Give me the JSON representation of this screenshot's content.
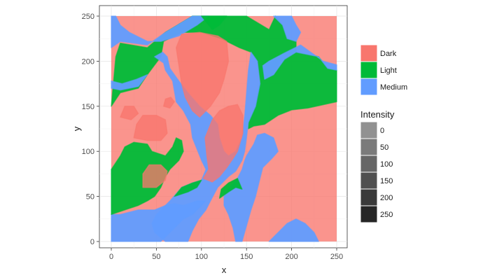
{
  "chart_data": {
    "type": "heatmap",
    "title": "",
    "xlabel": "x",
    "ylabel": "y",
    "xlim": [
      0,
      250
    ],
    "ylim": [
      0,
      250
    ],
    "x_ticks": [
      0,
      50,
      100,
      150,
      200,
      250
    ],
    "y_ticks": [
      0,
      50,
      100,
      150,
      200,
      250
    ],
    "grid": true,
    "legend_position": "right",
    "fill_legend": {
      "title": "",
      "entries": [
        {
          "label": "Dark",
          "color": "#F8766D"
        },
        {
          "label": "Light",
          "color": "#00BA38"
        },
        {
          "label": "Medium",
          "color": "#619CFF"
        }
      ]
    },
    "alpha_legend": {
      "title": "Intensity",
      "entries": [
        {
          "label": "0",
          "value": 0
        },
        {
          "label": "50",
          "value": 50
        },
        {
          "label": "100",
          "value": 100
        },
        {
          "label": "150",
          "value": 150
        },
        {
          "label": "200",
          "value": 200
        },
        {
          "label": "250",
          "value": 250
        }
      ]
    },
    "background_class": "Dark",
    "regions": [
      {
        "class": "Light",
        "points": [
          [
            0,
            150
          ],
          [
            5,
            205
          ],
          [
            10,
            220
          ],
          [
            40,
            215
          ],
          [
            60,
            232
          ],
          [
            90,
            250
          ],
          [
            150,
            250
          ],
          [
            175,
            235
          ],
          [
            182,
            250
          ],
          [
            190,
            240
          ],
          [
            195,
            225
          ],
          [
            205,
            222
          ],
          [
            205,
            210
          ],
          [
            230,
            205
          ],
          [
            240,
            192
          ],
          [
            250,
            190
          ],
          [
            250,
            155
          ],
          [
            218,
            148
          ],
          [
            200,
            146
          ],
          [
            185,
            140
          ],
          [
            170,
            130
          ],
          [
            158,
            128
          ],
          [
            152,
            125
          ],
          [
            152,
            132
          ],
          [
            160,
            150
          ],
          [
            165,
            178
          ],
          [
            162,
            200
          ],
          [
            155,
            210
          ],
          [
            142,
            215
          ],
          [
            122,
            225
          ],
          [
            100,
            232
          ],
          [
            78,
            232
          ],
          [
            58,
            222
          ],
          [
            55,
            205
          ],
          [
            40,
            185
          ],
          [
            30,
            170
          ],
          [
            10,
            165
          ]
        ]
      },
      {
        "class": "Medium",
        "points": [
          [
            0,
            215
          ],
          [
            10,
            222
          ],
          [
            40,
            218
          ],
          [
            60,
            232
          ],
          [
            90,
            250
          ],
          [
            108,
            250
          ],
          [
            95,
            240
          ],
          [
            75,
            228
          ],
          [
            55,
            222
          ],
          [
            40,
            222
          ],
          [
            20,
            232
          ],
          [
            10,
            240
          ],
          [
            5,
            250
          ],
          [
            0,
            250
          ]
        ]
      },
      {
        "class": "Medium",
        "points": [
          [
            180,
            250
          ],
          [
            200,
            250
          ],
          [
            205,
            240
          ],
          [
            210,
            232
          ],
          [
            205,
            222
          ],
          [
            195,
            225
          ],
          [
            190,
            240
          ]
        ]
      },
      {
        "class": "Medium",
        "points": [
          [
            175,
            200
          ],
          [
            190,
            208
          ],
          [
            210,
            218
          ],
          [
            235,
            200
          ],
          [
            250,
            196
          ],
          [
            250,
            190
          ],
          [
            240,
            192
          ],
          [
            230,
            205
          ],
          [
            205,
            210
          ],
          [
            192,
            202
          ],
          [
            180,
            185
          ],
          [
            170,
            180
          ],
          [
            168,
            195
          ]
        ]
      },
      {
        "class": "Medium",
        "points": [
          [
            162,
            200
          ],
          [
            165,
            175
          ],
          [
            160,
            150
          ],
          [
            152,
            132
          ],
          [
            150,
            115
          ],
          [
            148,
            100
          ],
          [
            145,
            90
          ],
          [
            138,
            78
          ],
          [
            130,
            72
          ],
          [
            118,
            60
          ],
          [
            110,
            45
          ],
          [
            105,
            35
          ],
          [
            97,
            25
          ],
          [
            90,
            12
          ],
          [
            85,
            0
          ],
          [
            60,
            0
          ],
          [
            48,
            10
          ],
          [
            45,
            20
          ],
          [
            50,
            30
          ],
          [
            65,
            45
          ],
          [
            78,
            60
          ],
          [
            90,
            65
          ],
          [
            100,
            68
          ],
          [
            105,
            80
          ],
          [
            100,
            90
          ],
          [
            90,
            115
          ],
          [
            88,
            130
          ],
          [
            80,
            145
          ],
          [
            72,
            155
          ],
          [
            68,
            178
          ],
          [
            60,
            190
          ],
          [
            58,
            198
          ],
          [
            48,
            205
          ],
          [
            57,
            210
          ],
          [
            62,
            205
          ],
          [
            65,
            192
          ],
          [
            75,
            178
          ],
          [
            85,
            165
          ],
          [
            98,
            150
          ],
          [
            110,
            140
          ],
          [
            118,
            130
          ],
          [
            120,
            115
          ],
          [
            125,
            100
          ],
          [
            130,
            95
          ],
          [
            138,
            100
          ],
          [
            145,
            115
          ],
          [
            148,
            140
          ],
          [
            150,
            165
          ],
          [
            152,
            190
          ],
          [
            155,
            210
          ]
        ]
      },
      {
        "class": "Medium",
        "points": [
          [
            145,
            0
          ],
          [
            155,
            35
          ],
          [
            160,
            50
          ],
          [
            165,
            70
          ],
          [
            168,
            82
          ],
          [
            178,
            92
          ],
          [
            185,
            100
          ],
          [
            180,
            115
          ],
          [
            170,
            120
          ],
          [
            162,
            118
          ],
          [
            158,
            108
          ],
          [
            150,
            95
          ],
          [
            148,
            90
          ],
          [
            145,
            80
          ],
          [
            140,
            70
          ],
          [
            130,
            58
          ],
          [
            125,
            50
          ],
          [
            125,
            40
          ],
          [
            130,
            30
          ],
          [
            135,
            15
          ],
          [
            138,
            0
          ]
        ]
      },
      {
        "class": "Medium",
        "points": [
          [
            0,
            0
          ],
          [
            0,
            30
          ],
          [
            10,
            30
          ],
          [
            30,
            35
          ],
          [
            48,
            35
          ],
          [
            60,
            40
          ],
          [
            70,
            42
          ],
          [
            80,
            40
          ],
          [
            95,
            45
          ],
          [
            105,
            45
          ],
          [
            100,
            40
          ],
          [
            90,
            30
          ],
          [
            80,
            25
          ],
          [
            70,
            15
          ],
          [
            60,
            5
          ],
          [
            55,
            0
          ]
        ]
      },
      {
        "class": "Medium",
        "points": [
          [
            175,
            0
          ],
          [
            185,
            10
          ],
          [
            195,
            20
          ],
          [
            205,
            25
          ],
          [
            215,
            20
          ],
          [
            225,
            10
          ],
          [
            230,
            0
          ]
        ]
      },
      {
        "class": "Medium",
        "points": [
          [
            0,
            170
          ],
          [
            10,
            168
          ],
          [
            30,
            172
          ],
          [
            40,
            185
          ],
          [
            28,
            180
          ],
          [
            12,
            175
          ],
          [
            0,
            178
          ]
        ]
      },
      {
        "class": "Light",
        "points": [
          [
            0,
            30
          ],
          [
            0,
            80
          ],
          [
            10,
            95
          ],
          [
            15,
            105
          ],
          [
            25,
            110
          ],
          [
            40,
            108
          ],
          [
            45,
            100
          ],
          [
            60,
            95
          ],
          [
            68,
            105
          ],
          [
            72,
            115
          ],
          [
            78,
            112
          ],
          [
            80,
            100
          ],
          [
            75,
            90
          ],
          [
            65,
            80
          ],
          [
            60,
            72
          ],
          [
            55,
            60
          ],
          [
            48,
            50
          ],
          [
            40,
            45
          ],
          [
            30,
            40
          ],
          [
            15,
            35
          ]
        ]
      },
      {
        "class": "Light",
        "points": [
          [
            70,
            50
          ],
          [
            85,
            55
          ],
          [
            95,
            60
          ],
          [
            100,
            68
          ],
          [
            90,
            65
          ],
          [
            78,
            60
          ]
        ]
      },
      {
        "class": "Light",
        "points": [
          [
            120,
            48
          ],
          [
            130,
            55
          ],
          [
            138,
            60
          ],
          [
            145,
            58
          ],
          [
            140,
            70
          ],
          [
            130,
            65
          ],
          [
            122,
            58
          ]
        ]
      },
      {
        "class": "Light",
        "points": [
          [
            100,
            250
          ],
          [
            128,
            250
          ],
          [
            120,
            240
          ],
          [
            112,
            235
          ]
        ]
      },
      {
        "class": "Dark",
        "points": [
          [
            25,
            115
          ],
          [
            40,
            112
          ],
          [
            55,
            112
          ],
          [
            62,
            120
          ],
          [
            60,
            135
          ],
          [
            50,
            140
          ],
          [
            35,
            140
          ],
          [
            28,
            130
          ]
        ]
      },
      {
        "class": "Dark",
        "points": [
          [
            10,
            138
          ],
          [
            22,
            135
          ],
          [
            30,
            142
          ],
          [
            25,
            150
          ],
          [
            15,
            150
          ]
        ]
      },
      {
        "class": "Dark",
        "points": [
          [
            35,
            60
          ],
          [
            50,
            60
          ],
          [
            60,
            68
          ],
          [
            62,
            78
          ],
          [
            55,
            85
          ],
          [
            42,
            85
          ],
          [
            35,
            75
          ]
        ]
      },
      {
        "class": "Dark",
        "points": [
          [
            78,
            230
          ],
          [
            98,
            232
          ],
          [
            118,
            228
          ],
          [
            128,
            222
          ],
          [
            130,
            200
          ],
          [
            125,
            180
          ],
          [
            120,
            165
          ],
          [
            110,
            150
          ],
          [
            98,
            138
          ],
          [
            90,
            145
          ],
          [
            82,
            160
          ],
          [
            78,
            175
          ],
          [
            75,
            195
          ],
          [
            72,
            215
          ]
        ]
      },
      {
        "class": "Dark",
        "points": [
          [
            102,
            70
          ],
          [
            108,
            80
          ],
          [
            106,
            95
          ],
          [
            104,
            115
          ],
          [
            108,
            125
          ],
          [
            112,
            135
          ],
          [
            120,
            145
          ],
          [
            130,
            150
          ],
          [
            140,
            152
          ],
          [
            146,
            140
          ],
          [
            146,
            120
          ],
          [
            140,
            100
          ],
          [
            135,
            92
          ],
          [
            128,
            82
          ],
          [
            120,
            72
          ],
          [
            112,
            66
          ]
        ]
      },
      {
        "class": "Dark",
        "points": [
          [
            58,
            150
          ],
          [
            65,
            148
          ],
          [
            70,
            155
          ],
          [
            66,
            160
          ],
          [
            60,
            158
          ]
        ]
      }
    ]
  }
}
